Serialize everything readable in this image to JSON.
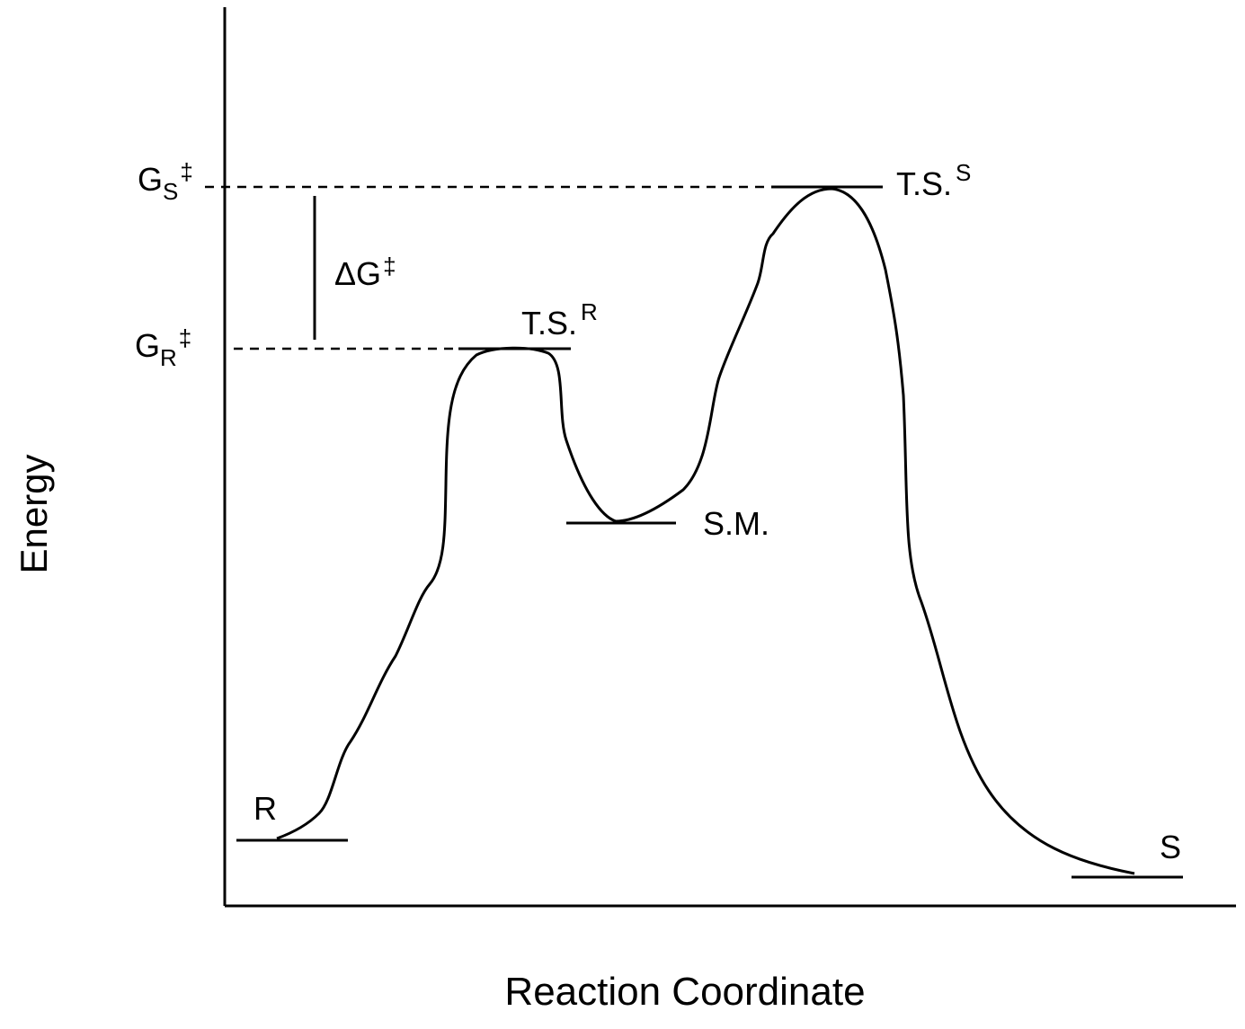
{
  "axes": {
    "y_label": "Energy",
    "x_label": "Reaction Coordinate"
  },
  "states": [
    {
      "label": "R"
    },
    {
      "label": "T.S.",
      "sup": "R"
    },
    {
      "label": "S.M."
    },
    {
      "label": "T.S.",
      "sup": "S"
    },
    {
      "label": "S"
    }
  ],
  "energy_levels": [
    {
      "symbol": "G",
      "sub": "S",
      "mark": "‡"
    },
    {
      "symbol": "G",
      "sub": "R",
      "mark": "‡"
    }
  ],
  "difference": {
    "symbol": "ΔG",
    "mark": "‡"
  }
}
